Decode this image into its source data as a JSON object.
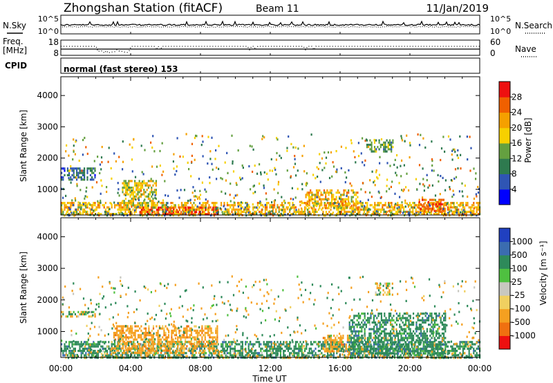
{
  "header": {
    "station": "Zhongshan Station (fitACF)",
    "beam": "Beam 11",
    "date": "11/Jan/2019"
  },
  "noise_panel": {
    "left_label": "N.Sky",
    "left_ticks": [
      "10^5",
      "10^0"
    ],
    "right_label": "N.Search",
    "right_ticks": [
      "10^5",
      "10^0"
    ]
  },
  "freq_panel": {
    "left_label_1": "Freq.",
    "left_label_2": "[MHz]",
    "left_ticks": [
      "18",
      "8"
    ],
    "right_label": "Nave",
    "right_ticks": [
      "60",
      "0"
    ]
  },
  "cpid_label": "CPID",
  "mode_text": "normal (fast stereo) 153",
  "power_panel": {
    "ylabel": "Slant Range [km]",
    "yticks": [
      "4000",
      "3000",
      "2000",
      "1000"
    ],
    "colorbar_label": "Power [dB]",
    "colorbar_ticks": [
      "28",
      "24",
      "20",
      "16",
      "12",
      "8",
      "4"
    ],
    "colors": [
      "#0000ff",
      "#2f55b4",
      "#2e7a4f",
      "#64a040",
      "#f7d000",
      "#f5a000",
      "#f06000",
      "#ee1010"
    ]
  },
  "velocity_panel": {
    "ylabel": "Slant Range [km]",
    "yticks": [
      "4000",
      "3000",
      "2000",
      "1000"
    ],
    "colorbar_label": "Velocity [m s⁻¹]",
    "colorbar_ticks": [
      "1000",
      "500",
      "100",
      "25",
      "-25",
      "-100",
      "-500",
      "-1000"
    ],
    "colors": [
      "#2040c0",
      "#3b6cb0",
      "#2e8a5a",
      "#4fc040",
      "#c8c8c0",
      "#f0d060",
      "#f5a020",
      "#f07010",
      "#ee1010"
    ]
  },
  "xaxis": {
    "label": "Time UT",
    "ticks": [
      "00:00",
      "04:00",
      "08:00",
      "12:00",
      "16:00",
      "20:00",
      "00:00"
    ]
  },
  "chart_data": [
    {
      "type": "heatmap",
      "title": "Zhongshan Station (fitACF) Beam 11 11/Jan/2019",
      "xlabel": "Time UT",
      "ylabel": "Slant Range [km]",
      "x": [
        "00:00",
        "04:00",
        "08:00",
        "12:00",
        "16:00",
        "20:00",
        "00:00"
      ],
      "ylim": [
        180,
        4600
      ],
      "zlabel": "Power [dB]",
      "zlim": [
        0,
        32
      ],
      "approx_regions": [
        {
          "t_start": 0.0,
          "t_end": 24.0,
          "range_lo": 200,
          "range_hi": 600,
          "power_db": 20
        },
        {
          "t_start": 4.5,
          "t_end": 9.0,
          "range_lo": 200,
          "range_hi": 450,
          "power_db": 28
        },
        {
          "t_start": 0.0,
          "t_end": 2.0,
          "range_lo": 1300,
          "range_hi": 1700,
          "power_db": 8
        },
        {
          "t_start": 3.5,
          "t_end": 5.5,
          "range_lo": 400,
          "range_hi": 1300,
          "power_db": 18
        },
        {
          "t_start": 14.0,
          "t_end": 17.0,
          "range_lo": 400,
          "range_hi": 1000,
          "power_db": 20
        },
        {
          "t_start": 17.5,
          "t_end": 19.0,
          "range_lo": 2200,
          "range_hi": 2600,
          "power_db": 12
        },
        {
          "t_start": 20.5,
          "t_end": 22.0,
          "range_lo": 300,
          "range_hi": 700,
          "power_db": 26
        }
      ]
    },
    {
      "type": "heatmap",
      "xlabel": "Time UT",
      "ylabel": "Slant Range [km]",
      "x": [
        "00:00",
        "04:00",
        "08:00",
        "12:00",
        "16:00",
        "20:00",
        "00:00"
      ],
      "ylim": [
        180,
        4600
      ],
      "zlabel": "Velocity [m s⁻¹]",
      "z_ticks": [
        1000,
        500,
        100,
        25,
        -25,
        -100,
        -500,
        -1000
      ],
      "approx_regions": [
        {
          "t_start": 0.0,
          "t_end": 24.0,
          "range_lo": 200,
          "range_hi": 700,
          "velocity": 300
        },
        {
          "t_start": 3.0,
          "t_end": 9.0,
          "range_lo": 300,
          "range_hi": 1200,
          "velocity": -300
        },
        {
          "t_start": 0.0,
          "t_end": 2.0,
          "range_lo": 1450,
          "range_hi": 1650,
          "velocity": 0
        },
        {
          "t_start": 15.0,
          "t_end": 16.5,
          "range_lo": 400,
          "range_hi": 900,
          "velocity": -300
        },
        {
          "t_start": 18.0,
          "t_end": 19.0,
          "range_lo": 2150,
          "range_hi": 2550,
          "velocity": 0
        },
        {
          "t_start": 16.5,
          "t_end": 22.0,
          "range_lo": 300,
          "range_hi": 1600,
          "velocity": 300
        }
      ]
    }
  ]
}
